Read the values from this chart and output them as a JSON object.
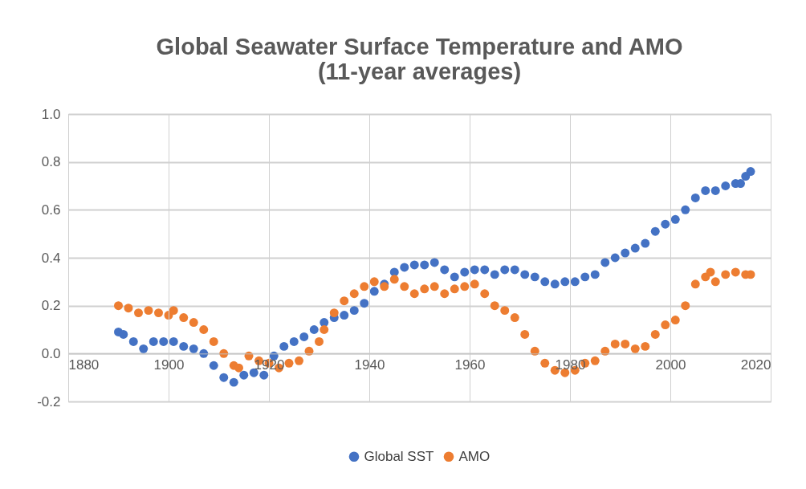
{
  "chart_data": {
    "type": "scatter",
    "title": "Global Seawater Surface Temperature and AMO\n(11-year averages)",
    "marker": "circle",
    "grid": true,
    "legend": "bottom",
    "xlim": [
      1880,
      2020
    ],
    "xticks": [
      1880,
      1900,
      1920,
      1940,
      1960,
      1980,
      2000,
      2020
    ],
    "ylim": [
      -0.2,
      1.0
    ],
    "yticks": [
      {
        "value": -0.2,
        "label": "-0.2"
      },
      {
        "value": 0,
        "label": "0.0"
      },
      {
        "value": 0.2,
        "label": "0.2"
      },
      {
        "value": 0.4,
        "label": "0.4"
      },
      {
        "value": 0.6,
        "label": "0.6"
      },
      {
        "value": 0.8,
        "label": "0.8"
      },
      {
        "value": 1.0,
        "label": "1.0"
      }
    ],
    "series": [
      {
        "name": "Global SST",
        "color": "#4472c4",
        "x": [
          1890,
          1891,
          1893,
          1895,
          1897,
          1899,
          1901,
          1903,
          1905,
          1907,
          1909,
          1911,
          1913,
          1915,
          1917,
          1919,
          1921,
          1923,
          1925,
          1927,
          1929,
          1931,
          1933,
          1935,
          1937,
          1939,
          1941,
          1943,
          1945,
          1947,
          1949,
          1951,
          1953,
          1955,
          1957,
          1959,
          1961,
          1963,
          1965,
          1967,
          1969,
          1971,
          1973,
          1975,
          1977,
          1979,
          1981,
          1983,
          1985,
          1987,
          1989,
          1991,
          1993,
          1995,
          1997,
          1999,
          2001,
          2003,
          2005,
          2007,
          2009,
          2011,
          2013,
          2014,
          2015,
          2016
        ],
        "values": [
          0.09,
          0.08,
          0.05,
          0.02,
          0.05,
          0.05,
          0.05,
          0.03,
          0.02,
          0.0,
          -0.05,
          -0.1,
          -0.12,
          -0.09,
          -0.08,
          -0.09,
          -0.01,
          0.03,
          0.05,
          0.07,
          0.1,
          0.13,
          0.15,
          0.16,
          0.18,
          0.21,
          0.26,
          0.29,
          0.34,
          0.36,
          0.37,
          0.37,
          0.38,
          0.35,
          0.32,
          0.34,
          0.35,
          0.35,
          0.33,
          0.35,
          0.35,
          0.33,
          0.32,
          0.3,
          0.29,
          0.3,
          0.3,
          0.32,
          0.33,
          0.38,
          0.4,
          0.42,
          0.44,
          0.46,
          0.51,
          0.54,
          0.56,
          0.6,
          0.65,
          0.68,
          0.68,
          0.7,
          0.71,
          0.71,
          0.74,
          0.76
        ]
      },
      {
        "name": "AMO",
        "color": "#ed7d31",
        "x": [
          1890,
          1892,
          1894,
          1896,
          1898,
          1900,
          1901,
          1903,
          1905,
          1907,
          1909,
          1911,
          1913,
          1914,
          1916,
          1918,
          1920,
          1922,
          1924,
          1926,
          1928,
          1930,
          1931,
          1933,
          1935,
          1937,
          1939,
          1941,
          1943,
          1945,
          1947,
          1949,
          1951,
          1953,
          1955,
          1957,
          1959,
          1961,
          1963,
          1965,
          1967,
          1969,
          1971,
          1973,
          1975,
          1977,
          1979,
          1981,
          1983,
          1985,
          1987,
          1989,
          1991,
          1993,
          1995,
          1997,
          1999,
          2001,
          2003,
          2005,
          2007,
          2008,
          2009,
          2011,
          2013,
          2015,
          2016
        ],
        "values": [
          0.2,
          0.19,
          0.17,
          0.18,
          0.17,
          0.16,
          0.18,
          0.15,
          0.13,
          0.1,
          0.05,
          0.0,
          -0.05,
          -0.06,
          -0.01,
          -0.03,
          -0.04,
          -0.06,
          -0.04,
          -0.03,
          0.01,
          0.05,
          0.1,
          0.17,
          0.22,
          0.25,
          0.28,
          0.3,
          0.28,
          0.31,
          0.28,
          0.25,
          0.27,
          0.28,
          0.25,
          0.27,
          0.28,
          0.29,
          0.25,
          0.2,
          0.18,
          0.15,
          0.08,
          0.01,
          -0.04,
          -0.07,
          -0.08,
          -0.07,
          -0.04,
          -0.03,
          0.01,
          0.04,
          0.04,
          0.02,
          0.03,
          0.08,
          0.12,
          0.14,
          0.2,
          0.29,
          0.32,
          0.34,
          0.3,
          0.33,
          0.34,
          0.33,
          0.33
        ]
      }
    ]
  }
}
